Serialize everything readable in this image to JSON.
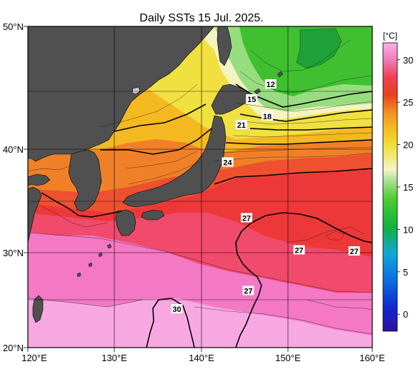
{
  "title": "Daily SSTs 15 Jul. 2025.",
  "axes": {
    "lat_labels": [
      "50°N",
      "40°N",
      "30°N",
      "20°N"
    ],
    "lon_labels": [
      "120°E",
      "130°E",
      "140°E",
      "150°E",
      "160°E"
    ]
  },
  "colorbar": {
    "unit": "[°C]",
    "ticks": [
      "30",
      "25",
      "20",
      "15",
      "10",
      "5",
      "0"
    ],
    "range": [
      -2,
      32
    ]
  },
  "map": {
    "extent": {
      "lon": [
        120,
        160
      ],
      "lat": [
        20,
        50
      ]
    },
    "grid": true,
    "land_color": "#505050",
    "contour_labels": [
      {
        "text": "12",
        "lon": 148.2,
        "lat": 44.6
      },
      {
        "text": "15",
        "lon": 146.0,
        "lat": 43.2
      },
      {
        "text": "18",
        "lon": 147.8,
        "lat": 41.6
      },
      {
        "text": "21",
        "lon": 144.8,
        "lat": 40.8
      },
      {
        "text": "24",
        "lon": 143.2,
        "lat": 37.3
      },
      {
        "text": "27",
        "lon": 145.4,
        "lat": 32.1
      },
      {
        "text": "27",
        "lon": 151.5,
        "lat": 29.1
      },
      {
        "text": "27",
        "lon": 157.9,
        "lat": 29.0
      },
      {
        "text": "27",
        "lon": 145.6,
        "lat": 25.3
      },
      {
        "text": "30",
        "lon": 137.3,
        "lat": 23.6
      }
    ]
  }
}
